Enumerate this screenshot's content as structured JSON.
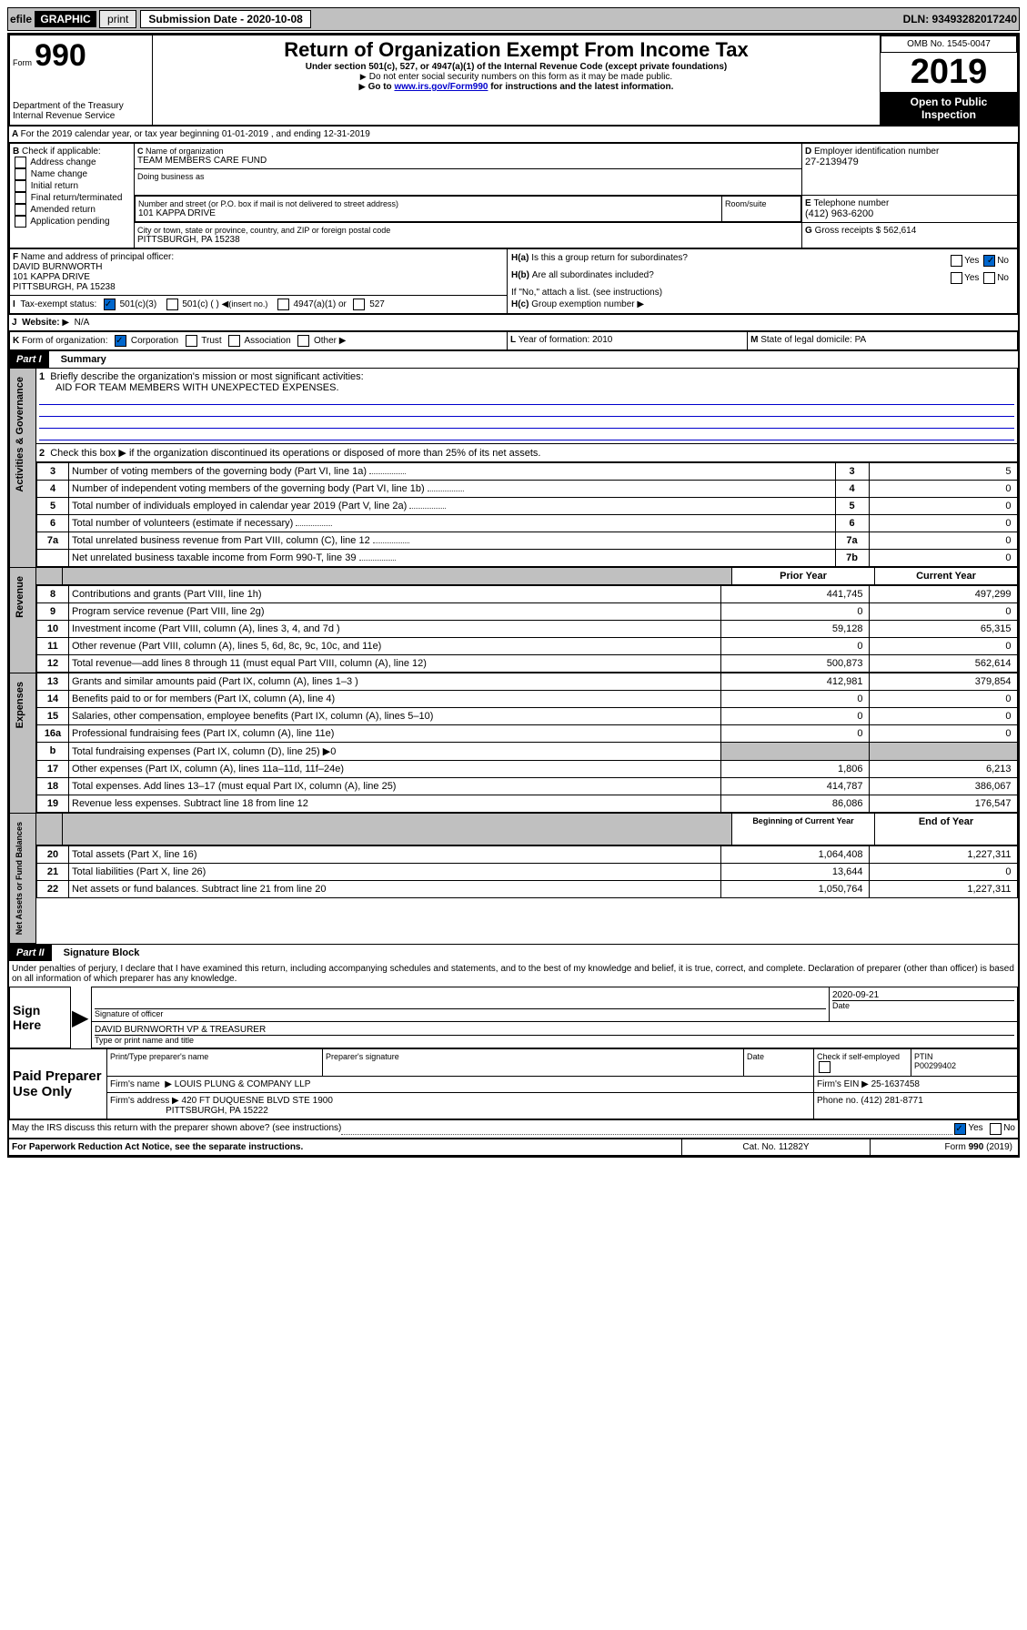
{
  "topbar": {
    "efile": "efile",
    "graphic": "GRAPHIC",
    "print": "print",
    "subdate_label": "Submission Date - 2020-10-08",
    "dln_label": "DLN: 93493282017240"
  },
  "header": {
    "form_label": "Form",
    "form_num": "990",
    "dept": "Department of the Treasury",
    "irs": "Internal Revenue Service",
    "title": "Return of Organization Exempt From Income Tax",
    "sub1": "Under section 501(c), 527, or 4947(a)(1) of the Internal Revenue Code (except private foundations)",
    "sub2": "Do not enter social security numbers on this form as it may be made public.",
    "sub3_a": "Go to ",
    "sub3_link": "www.irs.gov/Form990",
    "sub3_b": " for instructions and the latest information.",
    "omb": "OMB No. 1545-0047",
    "year": "2019",
    "open": "Open to Public Inspection"
  },
  "A": {
    "text": "For the 2019 calendar year, or tax year beginning 01-01-2019   , and ending 12-31-2019"
  },
  "B": {
    "label": "Check if applicable:",
    "items": [
      "Address change",
      "Name change",
      "Initial return",
      "Final return/terminated",
      "Amended return",
      "Application pending"
    ]
  },
  "C": {
    "name_label": "Name of organization",
    "name": "TEAM MEMBERS CARE FUND",
    "dba_label": "Doing business as",
    "dba": "",
    "addr_label": "Number and street (or P.O. box if mail is not delivered to street address)",
    "room_label": "Room/suite",
    "addr": "101 KAPPA DRIVE",
    "city_label": "City or town, state or province, country, and ZIP or foreign postal code",
    "city": "PITTSBURGH, PA  15238"
  },
  "D": {
    "label": "Employer identification number",
    "val": "27-2139479"
  },
  "E": {
    "label": "Telephone number",
    "val": "(412) 963-6200"
  },
  "G": {
    "label": "Gross receipts $",
    "val": "562,614"
  },
  "F": {
    "label": "Name and address of principal officer:",
    "name": "DAVID BURNWORTH",
    "addr1": "101 KAPPA DRIVE",
    "addr2": "PITTSBURGH, PA  15238"
  },
  "H": {
    "a": "Is this a group return for subordinates?",
    "b": "Are all subordinates included?",
    "b_note": "If \"No,\" attach a list. (see instructions)",
    "c": "Group exemption number",
    "yes": "Yes",
    "no": "No"
  },
  "I": {
    "label": "Tax-exempt status:",
    "opt1": "501(c)(3)",
    "opt2": "501(c) (   )",
    "opt2_note": "(insert no.)",
    "opt3": "4947(a)(1) or",
    "opt4": "527"
  },
  "J": {
    "label": "Website:",
    "val": "N/A"
  },
  "K": {
    "label": "Form of organization:",
    "corp": "Corporation",
    "trust": "Trust",
    "assoc": "Association",
    "other": "Other"
  },
  "L": {
    "label": "Year of formation:",
    "val": "2010"
  },
  "M": {
    "label": "State of legal domicile:",
    "val": "PA"
  },
  "part1": {
    "tag": "Part I",
    "title": "Summary",
    "q1": "Briefly describe the organization's mission or most significant activities:",
    "q1_val": "AID FOR TEAM MEMBERS WITH UNEXPECTED EXPENSES.",
    "side_ag": "Activities & Governance",
    "side_rev": "Revenue",
    "side_exp": "Expenses",
    "side_net": "Net Assets or Fund Balances",
    "q2": "Check this box ▶       if the organization discontinued its operations or disposed of more than 25% of its net assets.",
    "rows_gov": [
      {
        "n": "3",
        "t": "Number of voting members of the governing body (Part VI, line 1a)",
        "rn": "3",
        "v": "5"
      },
      {
        "n": "4",
        "t": "Number of independent voting members of the governing body (Part VI, line 1b)",
        "rn": "4",
        "v": "0"
      },
      {
        "n": "5",
        "t": "Total number of individuals employed in calendar year 2019 (Part V, line 2a)",
        "rn": "5",
        "v": "0"
      },
      {
        "n": "6",
        "t": "Total number of volunteers (estimate if necessary)",
        "rn": "6",
        "v": "0"
      },
      {
        "n": "7a",
        "t": "Total unrelated business revenue from Part VIII, column (C), line 12",
        "rn": "7a",
        "v": "0"
      },
      {
        "n": "",
        "t": "Net unrelated business taxable income from Form 990-T, line 39",
        "rn": "7b",
        "v": "0"
      }
    ],
    "hdr_prior": "Prior Year",
    "hdr_curr": "Current Year",
    "rows_rev": [
      {
        "n": "8",
        "t": "Contributions and grants (Part VIII, line 1h)",
        "p": "441,745",
        "c": "497,299"
      },
      {
        "n": "9",
        "t": "Program service revenue (Part VIII, line 2g)",
        "p": "0",
        "c": "0"
      },
      {
        "n": "10",
        "t": "Investment income (Part VIII, column (A), lines 3, 4, and 7d )",
        "p": "59,128",
        "c": "65,315"
      },
      {
        "n": "11",
        "t": "Other revenue (Part VIII, column (A), lines 5, 6d, 8c, 9c, 10c, and 11e)",
        "p": "0",
        "c": "0"
      },
      {
        "n": "12",
        "t": "Total revenue—add lines 8 through 11 (must equal Part VIII, column (A), line 12)",
        "p": "500,873",
        "c": "562,614"
      }
    ],
    "rows_exp": [
      {
        "n": "13",
        "t": "Grants and similar amounts paid (Part IX, column (A), lines 1–3 )",
        "p": "412,981",
        "c": "379,854"
      },
      {
        "n": "14",
        "t": "Benefits paid to or for members (Part IX, column (A), line 4)",
        "p": "0",
        "c": "0"
      },
      {
        "n": "15",
        "t": "Salaries, other compensation, employee benefits (Part IX, column (A), lines 5–10)",
        "p": "0",
        "c": "0"
      },
      {
        "n": "16a",
        "t": "Professional fundraising fees (Part IX, column (A), line 11e)",
        "p": "0",
        "c": "0"
      },
      {
        "n": "b",
        "t": "Total fundraising expenses (Part IX, column (D), line 25) ▶0",
        "p": "",
        "c": ""
      },
      {
        "n": "17",
        "t": "Other expenses (Part IX, column (A), lines 11a–11d, 11f–24e)",
        "p": "1,806",
        "c": "6,213"
      },
      {
        "n": "18",
        "t": "Total expenses. Add lines 13–17 (must equal Part IX, column (A), line 25)",
        "p": "414,787",
        "c": "386,067"
      },
      {
        "n": "19",
        "t": "Revenue less expenses. Subtract line 18 from line 12",
        "p": "86,086",
        "c": "176,547"
      }
    ],
    "hdr_beg": "Beginning of Current Year",
    "hdr_end": "End of Year",
    "rows_net": [
      {
        "n": "20",
        "t": "Total assets (Part X, line 16)",
        "p": "1,064,408",
        "c": "1,227,311"
      },
      {
        "n": "21",
        "t": "Total liabilities (Part X, line 26)",
        "p": "13,644",
        "c": "0"
      },
      {
        "n": "22",
        "t": "Net assets or fund balances. Subtract line 21 from line 20",
        "p": "1,050,764",
        "c": "1,227,311"
      }
    ]
  },
  "part2": {
    "tag": "Part II",
    "title": "Signature Block",
    "decl": "Under penalties of perjury, I declare that I have examined this return, including accompanying schedules and statements, and to the best of my knowledge and belief, it is true, correct, and complete. Declaration of preparer (other than officer) is based on all information of which preparer has any knowledge.",
    "signhere": "Sign Here",
    "sig_officer": "Signature of officer",
    "sig_date": "Date",
    "sig_date_val": "2020-09-21",
    "sig_name": "DAVID BURNWORTH  VP & TREASURER",
    "sig_name_label": "Type or print name and title",
    "paid": "Paid Preparer Use Only",
    "prep_name": "Print/Type preparer's name",
    "prep_sig": "Preparer's signature",
    "prep_date": "Date",
    "prep_check": "Check        if self-employed",
    "ptin": "PTIN",
    "ptin_val": "P00299402",
    "firm_name_label": "Firm's name",
    "firm_name": "LOUIS PLUNG & COMPANY LLP",
    "firm_ein_label": "Firm's EIN",
    "firm_ein": "25-1637458",
    "firm_addr_label": "Firm's address",
    "firm_addr1": "420 FT DUQUESNE BLVD STE 1900",
    "firm_addr2": "PITTSBURGH, PA  15222",
    "phone_label": "Phone no.",
    "phone": "(412) 281-8771",
    "discuss": "May the IRS discuss this return with the preparer shown above? (see instructions)"
  },
  "footer": {
    "pra": "For Paperwork Reduction Act Notice, see the separate instructions.",
    "cat": "Cat. No. 11282Y",
    "form": "Form 990 (2019)"
  }
}
